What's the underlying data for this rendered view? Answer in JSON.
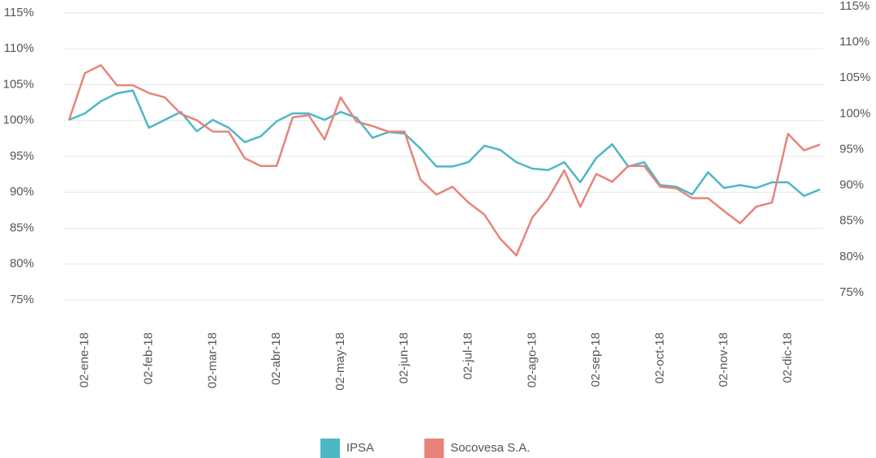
{
  "chart_data": {
    "type": "line",
    "categories": [
      null,
      "02-ene-18",
      null,
      null,
      null,
      "02-feb-18",
      null,
      null,
      null,
      "02-mar-18",
      null,
      null,
      null,
      "02-abr-18",
      null,
      null,
      null,
      "02-may-18",
      null,
      null,
      null,
      "02-jun-18",
      null,
      null,
      null,
      "02-jul-18",
      null,
      null,
      null,
      "02-ago-18",
      null,
      null,
      null,
      "02-sep-18",
      null,
      null,
      null,
      "02-oct-18",
      null,
      null,
      null,
      "02-nov-18",
      null,
      null,
      null,
      "02-dic-18",
      null,
      null
    ],
    "series": [
      {
        "name": "IPSA",
        "color": "#4db8c4",
        "values": [
          100.1,
          101.0,
          102.7,
          103.8,
          104.2,
          99.0,
          100.1,
          101.2,
          98.5,
          100.1,
          99.0,
          97.0,
          97.8,
          99.9,
          101.0,
          101.0,
          100.1,
          101.2,
          100.4,
          97.6,
          98.4,
          98.2,
          96.1,
          93.6,
          93.6,
          94.2,
          96.5,
          95.9,
          94.2,
          93.3,
          93.1,
          94.2,
          91.4,
          94.8,
          96.7,
          93.6,
          94.2,
          91.0,
          90.8,
          89.7,
          92.8,
          90.6,
          91.0,
          90.6,
          91.4,
          91.4,
          89.5,
          90.4
        ]
      },
      {
        "name": "Socovesa S.A.",
        "color": "#e8837a",
        "axis": "y2",
        "values": [
          99.1,
          105.7,
          106.8,
          104.0,
          104.0,
          102.9,
          102.3,
          100.0,
          99.1,
          97.5,
          97.5,
          93.8,
          92.7,
          92.7,
          99.5,
          99.8,
          96.4,
          102.3,
          98.9,
          98.3,
          97.5,
          97.5,
          90.8,
          88.7,
          89.8,
          87.6,
          85.9,
          82.5,
          80.2,
          85.5,
          88.2,
          92.1,
          87.0,
          91.6,
          90.5,
          92.7,
          92.7,
          89.8,
          89.6,
          88.2,
          88.2,
          86.4,
          84.7,
          87.0,
          87.6,
          97.2,
          94.9,
          95.7
        ]
      }
    ],
    "ylim": [
      70,
      115
    ],
    "yticks": [
      {
        "value": 75,
        "label": "75%"
      },
      {
        "value": 80,
        "label": "80%"
      },
      {
        "value": 85,
        "label": "85%"
      },
      {
        "value": 90,
        "label": "90%"
      },
      {
        "value": 95,
        "label": "95%"
      },
      {
        "value": 100,
        "label": "100%"
      },
      {
        "value": 105,
        "label": "105%"
      },
      {
        "value": 110,
        "label": "110%"
      },
      {
        "value": 115,
        "label": "115%"
      }
    ],
    "y2lim": [
      70,
      115
    ],
    "y2ticks": [
      {
        "value": 75,
        "label": "75%"
      },
      {
        "value": 80,
        "label": "80%"
      },
      {
        "value": 85,
        "label": "85%"
      },
      {
        "value": 90,
        "label": "90%"
      },
      {
        "value": 95,
        "label": "95%"
      },
      {
        "value": 100,
        "label": "100%"
      },
      {
        "value": 105,
        "label": "105%"
      },
      {
        "value": 110,
        "label": "110%"
      },
      {
        "value": 115,
        "label": "115%"
      }
    ],
    "grid": true
  }
}
